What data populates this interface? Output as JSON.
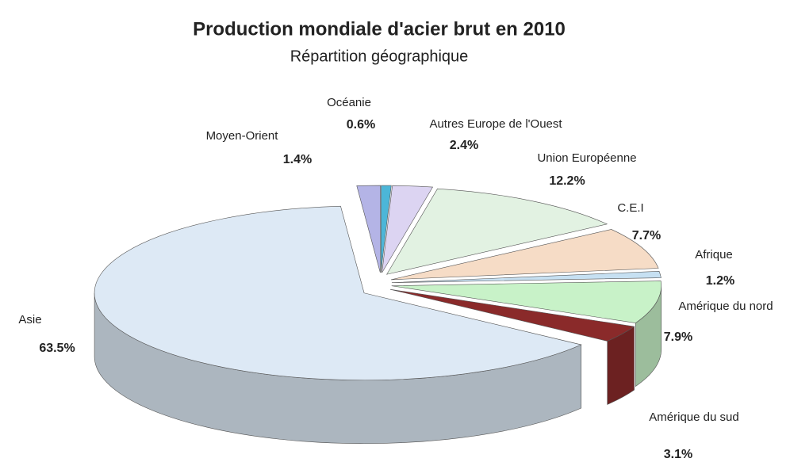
{
  "chart_data": {
    "type": "pie",
    "title": "Production mondiale d'acier brut en 2010",
    "subtitle": "Répartition géographique",
    "categories": [
      "Moyen-Orient",
      "Océanie",
      "Autres Europe de l'Ouest",
      "Union Européenne",
      "C.E.I",
      "Afrique",
      "Amérique du nord",
      "Amérique du sud",
      "Asie"
    ],
    "values": [
      1.4,
      0.6,
      2.4,
      12.2,
      7.7,
      1.2,
      7.9,
      3.1,
      63.5
    ],
    "value_labels": [
      "1.4%",
      "0.6%",
      "2.4%",
      "12.2%",
      "7.7%",
      "1.2%",
      "7.9%",
      "3.1%",
      "63.5%"
    ],
    "colors": [
      "#b4b4e6",
      "#4cb6d8",
      "#dcd4f2",
      "#e2f2e2",
      "#f6dcc6",
      "#c6e0f2",
      "#c8f2c8",
      "#8a2a2a",
      "#dde9f5"
    ]
  }
}
